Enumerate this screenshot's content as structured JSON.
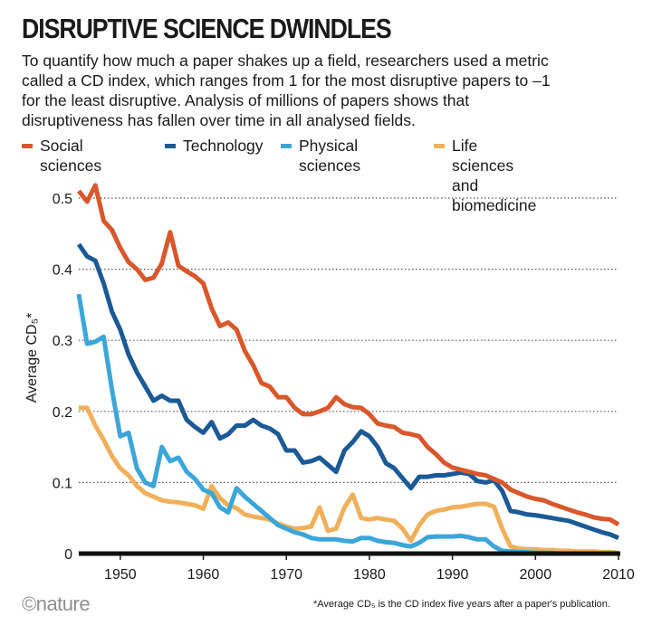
{
  "header": {
    "title": "DISRUPTIVE SCIENCE DWINDLES",
    "subtitle": "To quantify how much a paper shakes up a field, researchers used a metric called a CD index, which ranges from 1 for the most disruptive papers to –1 for the least disruptive. Analysis of millions of papers shows that disruptiveness has fallen over time in all analysed fields."
  },
  "footer": {
    "logo": "©nature",
    "footnote": "*Average CD₅ is the CD index five years after a paper's publication."
  },
  "chart_data": {
    "type": "line",
    "title": "DISRUPTIVE SCIENCE DWINDLES",
    "xlabel": "",
    "ylabel": "Average CD₅*",
    "xlim": [
      1945,
      2010
    ],
    "ylim": [
      0,
      0.5
    ],
    "x_ticks": [
      1950,
      1960,
      1970,
      1980,
      1990,
      2000,
      2010
    ],
    "y_ticks": [
      0,
      0.1,
      0.2,
      0.3,
      0.4,
      0.5
    ],
    "y_tick_labels": [
      "0",
      "0.1",
      "0.2",
      "0.3",
      "0.4",
      "0.5"
    ],
    "grid": "horizontal dotted",
    "legend_position": "top",
    "series": [
      {
        "name": "Social sciences",
        "color": "#d9572b",
        "x": [
          1945,
          1946,
          1947,
          1948,
          1949,
          1950,
          1951,
          1952,
          1953,
          1954,
          1955,
          1956,
          1957,
          1958,
          1959,
          1960,
          1961,
          1962,
          1963,
          1964,
          1965,
          1966,
          1967,
          1968,
          1969,
          1970,
          1971,
          1972,
          1973,
          1974,
          1975,
          1976,
          1977,
          1978,
          1979,
          1980,
          1981,
          1982,
          1983,
          1984,
          1985,
          1986,
          1987,
          1988,
          1989,
          1990,
          1991,
          1992,
          1993,
          1994,
          1995,
          1996,
          1997,
          1998,
          1999,
          2000,
          2001,
          2002,
          2003,
          2004,
          2005,
          2006,
          2007,
          2008,
          2009,
          2010
        ],
        "values": [
          0.51,
          0.495,
          0.518,
          0.468,
          0.455,
          0.43,
          0.41,
          0.4,
          0.385,
          0.388,
          0.408,
          0.452,
          0.405,
          0.397,
          0.39,
          0.38,
          0.345,
          0.32,
          0.325,
          0.315,
          0.285,
          0.265,
          0.24,
          0.235,
          0.22,
          0.22,
          0.205,
          0.196,
          0.196,
          0.2,
          0.205,
          0.22,
          0.21,
          0.206,
          0.205,
          0.196,
          0.183,
          0.18,
          0.178,
          0.17,
          0.168,
          0.165,
          0.15,
          0.14,
          0.128,
          0.121,
          0.118,
          0.115,
          0.112,
          0.11,
          0.105,
          0.1,
          0.09,
          0.085,
          0.08,
          0.077,
          0.075,
          0.07,
          0.066,
          0.062,
          0.058,
          0.055,
          0.051,
          0.049,
          0.048,
          0.041
        ]
      },
      {
        "name": "Technology",
        "color": "#1a5a96",
        "x": [
          1945,
          1946,
          1947,
          1948,
          1949,
          1950,
          1951,
          1952,
          1953,
          1954,
          1955,
          1956,
          1957,
          1958,
          1959,
          1960,
          1961,
          1962,
          1963,
          1964,
          1965,
          1966,
          1967,
          1968,
          1969,
          1970,
          1971,
          1972,
          1973,
          1974,
          1975,
          1976,
          1977,
          1978,
          1979,
          1980,
          1981,
          1982,
          1983,
          1984,
          1985,
          1986,
          1987,
          1988,
          1989,
          1990,
          1991,
          1992,
          1993,
          1994,
          1995,
          1996,
          1997,
          1998,
          1999,
          2000,
          2001,
          2002,
          2003,
          2004,
          2005,
          2006,
          2007,
          2008,
          2009,
          2010
        ],
        "values": [
          0.435,
          0.418,
          0.412,
          0.38,
          0.34,
          0.315,
          0.28,
          0.255,
          0.235,
          0.215,
          0.222,
          0.215,
          0.215,
          0.188,
          0.178,
          0.17,
          0.185,
          0.162,
          0.168,
          0.18,
          0.18,
          0.188,
          0.18,
          0.176,
          0.168,
          0.145,
          0.145,
          0.128,
          0.13,
          0.135,
          0.125,
          0.115,
          0.145,
          0.157,
          0.172,
          0.165,
          0.15,
          0.127,
          0.12,
          0.106,
          0.092,
          0.108,
          0.108,
          0.11,
          0.11,
          0.112,
          0.114,
          0.112,
          0.102,
          0.1,
          0.103,
          0.088,
          0.06,
          0.058,
          0.055,
          0.054,
          0.052,
          0.05,
          0.048,
          0.046,
          0.042,
          0.038,
          0.034,
          0.03,
          0.027,
          0.022
        ]
      },
      {
        "name": "Physical sciences",
        "color": "#3ba6d9",
        "x": [
          1945,
          1946,
          1947,
          1948,
          1949,
          1950,
          1951,
          1952,
          1953,
          1954,
          1955,
          1956,
          1957,
          1958,
          1959,
          1960,
          1961,
          1962,
          1963,
          1964,
          1965,
          1966,
          1967,
          1968,
          1969,
          1970,
          1971,
          1972,
          1973,
          1974,
          1975,
          1976,
          1977,
          1978,
          1979,
          1980,
          1981,
          1982,
          1983,
          1984,
          1985,
          1986,
          1987,
          1988,
          1989,
          1990,
          1991,
          1992,
          1993,
          1994,
          1995,
          1996,
          1997,
          1998,
          1999,
          2000,
          2001,
          2002,
          2003,
          2004,
          2005,
          2006,
          2007,
          2008,
          2009,
          2010
        ],
        "values": [
          0.365,
          0.295,
          0.298,
          0.305,
          0.23,
          0.165,
          0.17,
          0.12,
          0.1,
          0.095,
          0.15,
          0.13,
          0.135,
          0.115,
          0.105,
          0.09,
          0.085,
          0.065,
          0.058,
          0.092,
          0.08,
          0.07,
          0.06,
          0.05,
          0.04,
          0.035,
          0.03,
          0.027,
          0.022,
          0.02,
          0.02,
          0.02,
          0.018,
          0.017,
          0.022,
          0.022,
          0.018,
          0.016,
          0.015,
          0.012,
          0.01,
          0.015,
          0.023,
          0.024,
          0.024,
          0.024,
          0.025,
          0.023,
          0.02,
          0.02,
          0.01,
          0.004,
          0.003,
          0.002,
          0.002,
          0.001,
          0.001,
          0.001,
          0,
          0,
          0,
          0,
          0,
          0,
          0,
          0
        ]
      },
      {
        "name": "Life sciences\nand biomedicine",
        "color": "#f0b05a",
        "x": [
          1945,
          1946,
          1947,
          1948,
          1949,
          1950,
          1951,
          1952,
          1953,
          1954,
          1955,
          1956,
          1957,
          1958,
          1959,
          1960,
          1961,
          1962,
          1963,
          1964,
          1965,
          1966,
          1967,
          1968,
          1969,
          1970,
          1971,
          1972,
          1973,
          1974,
          1975,
          1976,
          1977,
          1978,
          1979,
          1980,
          1981,
          1982,
          1983,
          1984,
          1985,
          1986,
          1987,
          1988,
          1989,
          1990,
          1991,
          1992,
          1993,
          1994,
          1995,
          1996,
          1997,
          1998,
          1999,
          2000,
          2001,
          2002,
          2003,
          2004,
          2005,
          2006,
          2007,
          2008,
          2009,
          2010
        ],
        "values": [
          0.205,
          0.205,
          0.18,
          0.16,
          0.137,
          0.12,
          0.11,
          0.095,
          0.085,
          0.08,
          0.075,
          0.073,
          0.072,
          0.07,
          0.068,
          0.063,
          0.095,
          0.078,
          0.068,
          0.064,
          0.055,
          0.052,
          0.05,
          0.048,
          0.042,
          0.038,
          0.035,
          0.036,
          0.038,
          0.065,
          0.032,
          0.035,
          0.065,
          0.083,
          0.05,
          0.048,
          0.05,
          0.048,
          0.046,
          0.035,
          0.018,
          0.04,
          0.055,
          0.06,
          0.062,
          0.065,
          0.066,
          0.068,
          0.07,
          0.07,
          0.066,
          0.035,
          0.01,
          0.007,
          0.006,
          0.006,
          0.005,
          0.005,
          0.004,
          0.004,
          0.003,
          0.003,
          0.003,
          0.002,
          0.002,
          0.001
        ]
      }
    ]
  }
}
